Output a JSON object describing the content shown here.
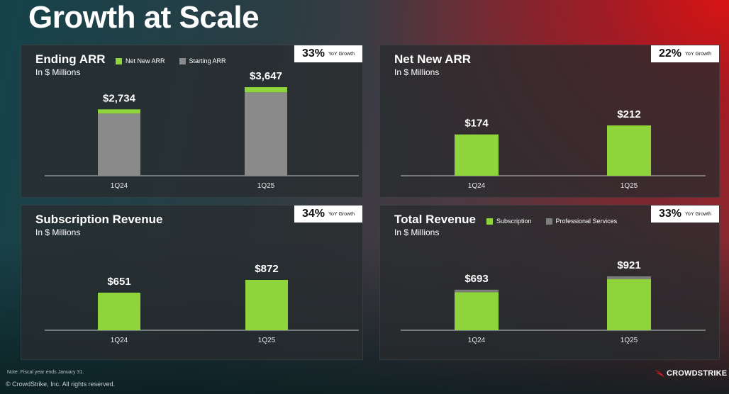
{
  "page": {
    "title": "Growth at Scale"
  },
  "colors": {
    "green": "#8fd43a",
    "gray": "#8a8a8a",
    "proServices": "#7d7d7d"
  },
  "panels": [
    {
      "id": "ending-arr",
      "title": "Ending ARR",
      "subtitle": "In $ Millions",
      "yoy": {
        "pct": "33%",
        "label": "YoY Growth"
      },
      "legend": [
        {
          "label": "Net New ARR",
          "color": "#8fd43a"
        },
        {
          "label": "Starting ARR",
          "color": "#8a8a8a"
        }
      ]
    },
    {
      "id": "net-new-arr",
      "title": "Net New ARR",
      "subtitle": "In $ Millions",
      "yoy": {
        "pct": "22%",
        "label": "YoY Growth"
      },
      "legend": []
    },
    {
      "id": "subscription-revenue",
      "title": "Subscription Revenue",
      "subtitle": "In $ Millions",
      "yoy": {
        "pct": "34%",
        "label": "YoY Growth"
      },
      "legend": []
    },
    {
      "id": "total-revenue",
      "title": "Total Revenue",
      "subtitle": "In $ Millions",
      "yoy": {
        "pct": "33%",
        "label": "YoY Growth"
      },
      "legend": [
        {
          "label": "Subscription",
          "color": "#8fd43a"
        },
        {
          "label": "Professional Services",
          "color": "#7d7d7d"
        }
      ]
    }
  ],
  "chart_data": [
    {
      "type": "bar",
      "title": "Ending ARR",
      "subtitle": "In $ Millions",
      "stacked": true,
      "categories": [
        "1Q24",
        "1Q25"
      ],
      "series": [
        {
          "name": "Starting ARR",
          "values": [
            2560,
            3435
          ],
          "color": "#8a8a8a"
        },
        {
          "name": "Net New ARR",
          "values": [
            174,
            212
          ],
          "color": "#8fd43a"
        }
      ],
      "totals": [
        2734,
        3647
      ],
      "data_labels": [
        "$2,734",
        "$3,647"
      ],
      "ylim": [
        0,
        3647
      ]
    },
    {
      "type": "bar",
      "title": "Net New ARR",
      "subtitle": "In $ Millions",
      "categories": [
        "1Q24",
        "1Q25"
      ],
      "series": [
        {
          "values": [
            174,
            212
          ],
          "color": "#8fd43a"
        }
      ],
      "totals": [
        174,
        212
      ],
      "data_labels": [
        "$174",
        "$212"
      ],
      "ylim": [
        0,
        212
      ]
    },
    {
      "type": "bar",
      "title": "Subscription Revenue",
      "subtitle": "In $ Millions",
      "categories": [
        "1Q24",
        "1Q25"
      ],
      "series": [
        {
          "values": [
            651,
            872
          ],
          "color": "#8fd43a"
        }
      ],
      "totals": [
        651,
        872
      ],
      "data_labels": [
        "$651",
        "$872"
      ],
      "ylim": [
        0,
        872
      ]
    },
    {
      "type": "bar",
      "title": "Total Revenue",
      "subtitle": "In $ Millions",
      "stacked": true,
      "categories": [
        "1Q24",
        "1Q25"
      ],
      "series": [
        {
          "name": "Subscription",
          "values": [
            651,
            872
          ],
          "color": "#8fd43a"
        },
        {
          "name": "Professional Services",
          "values": [
            42,
            49
          ],
          "color": "#7d7d7d"
        }
      ],
      "totals": [
        693,
        921
      ],
      "data_labels": [
        "$693",
        "$921"
      ],
      "ylim": [
        0,
        921
      ]
    }
  ],
  "footer": {
    "note": "Note: Fiscal year ends January 31.",
    "copyright": "© CrowdStrike, Inc. All rights reserved.",
    "logo_text": "CROWDSTRIKE"
  }
}
